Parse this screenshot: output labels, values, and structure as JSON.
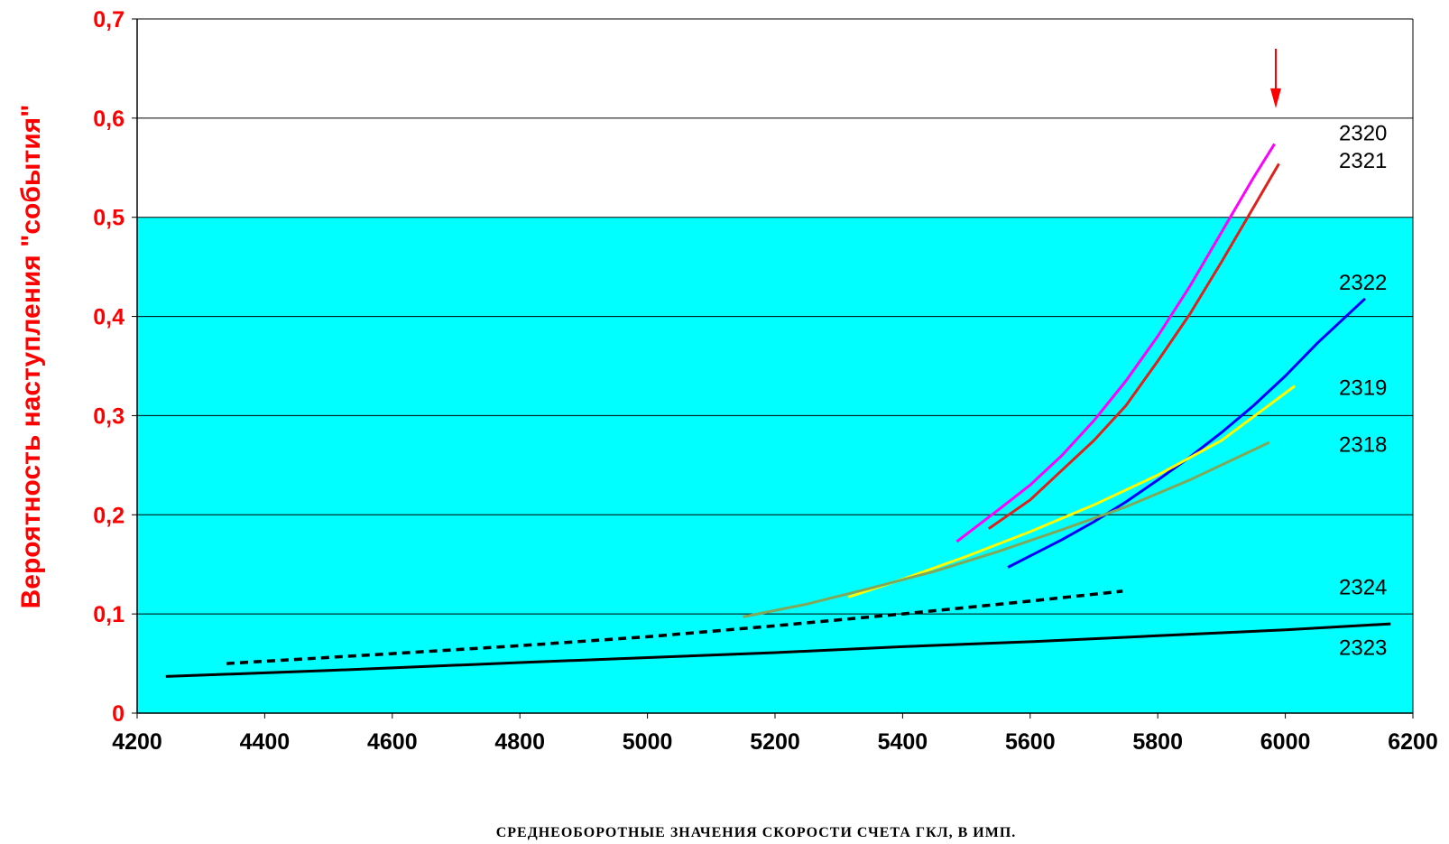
{
  "chart_data": {
    "type": "line",
    "xlabel": "СРЕДНЕОБОРОТНЫЕ  ЗНАЧЕНИЯ  СКОРОСТИ  СЧЕТА  ГКЛ,   В ИМП.",
    "ylabel": "Вероятность  наступления   \"события\"",
    "xlim": [
      4200,
      6200
    ],
    "ylim": [
      0,
      0.7
    ],
    "x_ticks": [
      "4200",
      "4400",
      "4600",
      "4800",
      "5000",
      "5200",
      "5400",
      "5600",
      "5800",
      "6000",
      "6200"
    ],
    "y_ticks": [
      "0",
      "0,1",
      "0,2",
      "0,3",
      "0,4",
      "0,5",
      "0,6",
      "0,7"
    ],
    "grid": "horizontal",
    "colors": {
      "plot_background_lower": "#00ffff",
      "plot_background_upper": "#ffffff",
      "gridline": "#000000",
      "axis_text": "#ff0000"
    },
    "shaded_band": {
      "from": 0,
      "to": 0.5,
      "color": "#00ffff"
    },
    "marker": {
      "type": "arrow-down",
      "x": 5985,
      "y_from": 0.67,
      "y_to": 0.61,
      "color": "#ff0000"
    },
    "series": [
      {
        "name": "2320",
        "color": "#ff00ff",
        "dashed": false,
        "x": [
          5485,
          5550,
          5600,
          5650,
          5700,
          5750,
          5800,
          5850,
          5900,
          5950,
          5983
        ],
        "y": [
          0.173,
          0.205,
          0.23,
          0.26,
          0.295,
          0.335,
          0.38,
          0.43,
          0.485,
          0.54,
          0.574
        ]
      },
      {
        "name": "2321",
        "color": "#e0201a",
        "dashed": false,
        "x": [
          5535,
          5600,
          5650,
          5700,
          5750,
          5800,
          5850,
          5900,
          5950,
          5990
        ],
        "y": [
          0.186,
          0.215,
          0.245,
          0.275,
          0.31,
          0.355,
          0.402,
          0.455,
          0.51,
          0.554
        ]
      },
      {
        "name": "2322",
        "color": "#0000ff",
        "dashed": false,
        "x": [
          5565,
          5650,
          5700,
          5750,
          5800,
          5850,
          5900,
          5950,
          6000,
          6050,
          6125
        ],
        "y": [
          0.147,
          0.175,
          0.193,
          0.213,
          0.235,
          0.258,
          0.283,
          0.31,
          0.34,
          0.373,
          0.418
        ]
      },
      {
        "name": "2319",
        "color": "#ffff00",
        "dashed": false,
        "x": [
          5315,
          5400,
          5500,
          5600,
          5700,
          5800,
          5900,
          6015
        ],
        "y": [
          0.117,
          0.135,
          0.158,
          0.183,
          0.21,
          0.24,
          0.275,
          0.33
        ]
      },
      {
        "name": "2318",
        "color": "#7fa85a",
        "dashed": false,
        "x": [
          5150,
          5250,
          5350,
          5450,
          5550,
          5650,
          5750,
          5850,
          5975
        ],
        "y": [
          0.097,
          0.11,
          0.126,
          0.143,
          0.163,
          0.185,
          0.208,
          0.235,
          0.273
        ]
      },
      {
        "name": "2324",
        "color": "#000000",
        "dashed": true,
        "x": [
          4340,
          4600,
          4800,
          5000,
          5200,
          5400,
          5600,
          5745
        ],
        "y": [
          0.05,
          0.06,
          0.068,
          0.077,
          0.088,
          0.1,
          0.113,
          0.123
        ]
      },
      {
        "name": "2323",
        "color": "#000000",
        "dashed": false,
        "x": [
          4245,
          4500,
          4800,
          5000,
          5200,
          5400,
          5600,
          5800,
          6000,
          6165
        ],
        "y": [
          0.037,
          0.043,
          0.051,
          0.056,
          0.061,
          0.067,
          0.072,
          0.078,
          0.084,
          0.09
        ]
      }
    ]
  }
}
